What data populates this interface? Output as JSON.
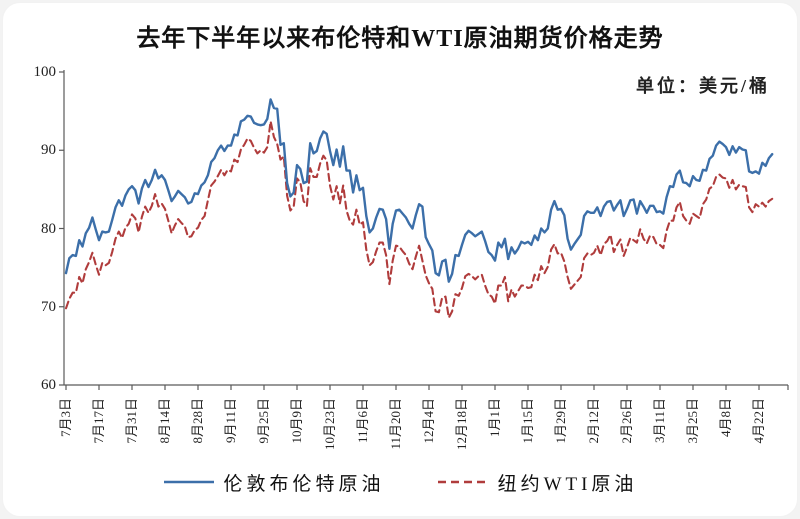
{
  "chart": {
    "title": "去年下半年以来布伦特和WTI原油期货价格走势",
    "unit_label": "单位：美元/桶"
  },
  "legend": {
    "items": [
      {
        "label": "伦敦布伦特原油",
        "color": "#3c6fa9",
        "style": "solid"
      },
      {
        "label": "纽约WTI原油",
        "color": "#b03c3c",
        "style": "dashed"
      }
    ]
  },
  "chart_data": {
    "type": "line",
    "title": "去年下半年以来布伦特和WTI原油期货价格走势",
    "unit": "单位：美元/桶",
    "ylim": [
      60,
      100
    ],
    "y_ticks": [
      60,
      70,
      80,
      90,
      100
    ],
    "grid": false,
    "legend_position": "bottom",
    "x_tick_labels": [
      "7月3日",
      "7月17日",
      "7月31日",
      "8月14日",
      "8月28日",
      "9月11日",
      "9月25日",
      "10月9日",
      "10月23日",
      "11月6日",
      "11月20日",
      "12月4日",
      "12月18日",
      "1月1日",
      "1月15日",
      "1月29日",
      "2月12日",
      "2月26日",
      "3月11日",
      "3月25日",
      "4月8日",
      "4月22日"
    ],
    "points_per_tick": 10,
    "series": [
      {
        "name": "伦敦布伦特原油",
        "color": "#3c6fa9",
        "line_style": "solid",
        "values": [
          74.3,
          76.2,
          76.6,
          76.5,
          78.5,
          77.7,
          79.4,
          80.1,
          81.4,
          79.9,
          78.5,
          79.6,
          79.5,
          79.6,
          81.1,
          82.7,
          83.6,
          82.9,
          84.2,
          85.0,
          85.4,
          84.9,
          83.2,
          85.1,
          86.2,
          85.3,
          86.2,
          87.5,
          86.4,
          86.8,
          86.2,
          84.9,
          83.5,
          84.1,
          84.8,
          84.4,
          84.0,
          83.2,
          83.4,
          84.5,
          84.4,
          85.5,
          85.9,
          86.8,
          88.5,
          89.0,
          90.0,
          90.6,
          89.9,
          90.6,
          90.6,
          92.0,
          91.9,
          93.7,
          93.9,
          94.4,
          94.3,
          93.5,
          93.3,
          93.2,
          93.3,
          94.0,
          96.5,
          95.4,
          95.3,
          90.7,
          90.9,
          85.8,
          84.1,
          84.6,
          88.1,
          87.6,
          85.8,
          86.0,
          90.9,
          89.6,
          89.9,
          91.5,
          92.4,
          92.1,
          89.9,
          88.1,
          90.1,
          87.9,
          90.5,
          87.4,
          87.4,
          84.6,
          86.8,
          84.9,
          85.2,
          81.6,
          79.5,
          80.0,
          81.4,
          82.5,
          82.4,
          81.2,
          77.4,
          80.6,
          82.3,
          82.4,
          81.9,
          81.4,
          80.6,
          80.0,
          81.7,
          83.1,
          82.8,
          78.9,
          78.0,
          77.2,
          74.3,
          74.0,
          75.8,
          76.0,
          73.2,
          74.2,
          76.6,
          76.5,
          77.9,
          79.2,
          79.7,
          79.4,
          79.0,
          79.3,
          79.6,
          78.4,
          77.0,
          76.6,
          75.9,
          78.2,
          77.6,
          78.7,
          76.1,
          77.6,
          76.8,
          77.4,
          78.3,
          78.1,
          78.3,
          77.9,
          79.1,
          78.5,
          80.0,
          79.5,
          80.0,
          82.4,
          83.5,
          82.4,
          82.5,
          81.7,
          78.7,
          77.3,
          78.0,
          78.6,
          79.2,
          81.6,
          82.2,
          82.0,
          82.0,
          82.7,
          81.6,
          82.8,
          83.4,
          83.5,
          82.3,
          83.0,
          83.6,
          81.6,
          82.5,
          83.6,
          83.7,
          81.9,
          83.5,
          82.8,
          82.0,
          82.9,
          82.9,
          82.1,
          82.2,
          81.9,
          84.0,
          85.4,
          85.3,
          86.9,
          87.4,
          85.9,
          85.8,
          85.4,
          86.7,
          86.2,
          86.1,
          87.5,
          87.4,
          88.9,
          89.3,
          90.6,
          91.1,
          90.8,
          90.4,
          89.4,
          90.5,
          89.7,
          90.4,
          90.1,
          90.0,
          87.3,
          87.1,
          87.3,
          87.0,
          88.4,
          88.0,
          89.0,
          89.5
        ]
      },
      {
        "name": "纽约WTI原油",
        "color": "#b03c3c",
        "line_style": "dashed",
        "values": [
          69.8,
          71.0,
          71.8,
          71.8,
          73.8,
          73.0,
          74.8,
          75.7,
          76.9,
          75.4,
          74.1,
          75.6,
          75.3,
          75.6,
          77.0,
          78.7,
          79.6,
          78.8,
          80.1,
          80.6,
          81.8,
          81.3,
          79.5,
          81.5,
          82.8,
          82.0,
          82.9,
          84.4,
          82.8,
          83.2,
          82.5,
          81.0,
          79.4,
          80.4,
          81.2,
          80.7,
          80.3,
          78.9,
          79.0,
          79.8,
          80.1,
          81.1,
          81.6,
          83.6,
          85.5,
          86.0,
          86.7,
          87.5,
          86.8,
          87.5,
          87.3,
          88.8,
          88.5,
          90.1,
          90.7,
          91.5,
          91.2,
          90.3,
          89.6,
          90.0,
          89.7,
          90.4,
          93.7,
          91.7,
          90.8,
          88.8,
          89.2,
          84.2,
          82.3,
          82.8,
          86.4,
          85.9,
          83.5,
          82.9,
          87.7,
          86.6,
          86.6,
          88.3,
          89.3,
          88.7,
          85.5,
          83.7,
          85.4,
          83.2,
          85.5,
          82.3,
          81.0,
          80.5,
          82.4,
          80.5,
          80.8,
          77.3,
          75.3,
          75.7,
          77.1,
          78.2,
          78.2,
          76.6,
          72.9,
          75.9,
          77.8,
          77.7,
          77.1,
          76.6,
          75.5,
          74.8,
          76.4,
          77.8,
          75.9,
          74.0,
          73.0,
          72.3,
          69.4,
          69.3,
          71.2,
          71.3,
          68.6,
          69.4,
          71.6,
          71.4,
          72.4,
          73.9,
          74.2,
          73.9,
          73.5,
          73.9,
          74.1,
          72.7,
          71.6,
          71.3,
          70.4,
          72.7,
          72.7,
          73.8,
          70.7,
          72.2,
          71.3,
          72.0,
          72.7,
          72.7,
          72.4,
          72.5,
          74.1,
          73.4,
          75.2,
          74.3,
          75.1,
          77.3,
          78.0,
          76.8,
          76.9,
          75.8,
          73.8,
          72.3,
          72.8,
          73.3,
          73.8,
          76.2,
          76.8,
          76.6,
          76.9,
          77.8,
          76.6,
          78.0,
          78.4,
          79.2,
          77.0,
          77.9,
          78.6,
          76.5,
          77.6,
          78.8,
          78.5,
          78.2,
          79.9,
          78.7,
          78.1,
          79.1,
          78.9,
          78.0,
          77.9,
          77.5,
          79.7,
          81.0,
          81.0,
          82.7,
          83.4,
          81.6,
          81.0,
          80.6,
          81.9,
          81.6,
          81.3,
          83.1,
          83.7,
          85.1,
          85.4,
          86.6,
          86.9,
          86.5,
          86.4,
          85.2,
          86.2,
          85.0,
          85.6,
          85.4,
          85.3,
          82.7,
          82.1,
          83.1,
          82.8,
          83.3,
          82.8,
          83.5,
          83.8
        ]
      }
    ]
  }
}
